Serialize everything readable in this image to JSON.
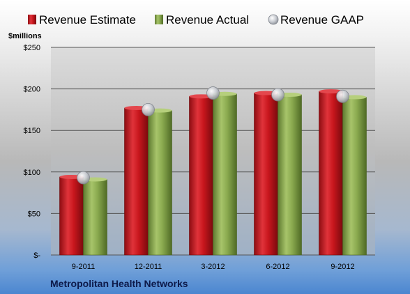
{
  "chart_data": {
    "type": "bar",
    "categories": [
      "9-2011",
      "12-2011",
      "3-2012",
      "6-2012",
      "9-2012"
    ],
    "series": [
      {
        "name": "Revenue Estimate",
        "values": [
          94,
          177,
          191,
          195,
          197
        ],
        "color": "#c8161d",
        "kind": "bar"
      },
      {
        "name": "Revenue Actual",
        "values": [
          91,
          174,
          194,
          193,
          190
        ],
        "color": "#8aaa4f",
        "kind": "bar"
      },
      {
        "name": "Revenue GAAP",
        "values": [
          93,
          175,
          195,
          193,
          191
        ],
        "color": "#b8bcc4",
        "kind": "marker"
      }
    ],
    "ylabel": "$millions",
    "ylim": [
      0,
      250
    ],
    "yticks": [
      0,
      50,
      100,
      150,
      200,
      250
    ],
    "ytick_labels": [
      "$-",
      "$50",
      "$100",
      "$150",
      "$200",
      "$250"
    ],
    "grid": true,
    "legend_position": "top",
    "footer_label": "Metropolitan Health Networks"
  }
}
